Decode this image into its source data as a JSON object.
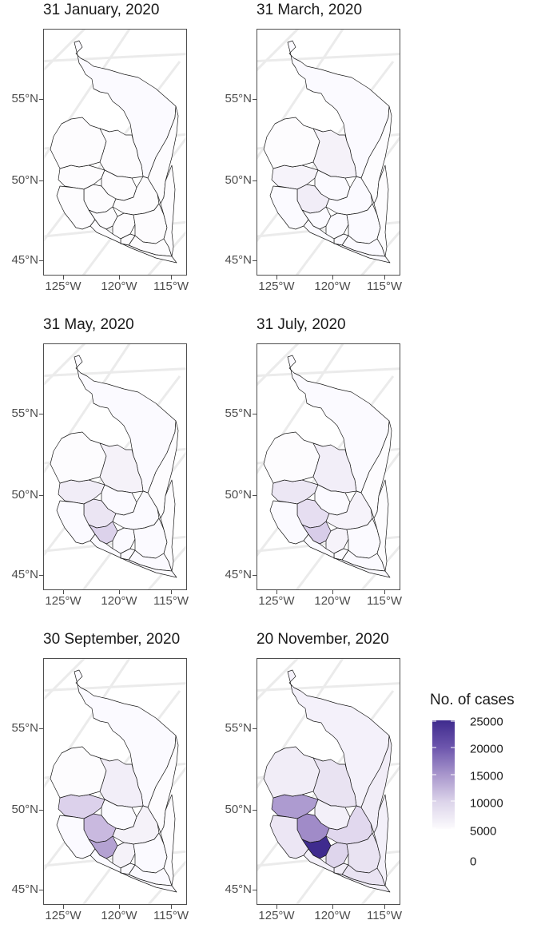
{
  "panels": [
    {
      "title": "31 January, 2020",
      "fills": [
        "#fbfaff",
        "#fdfcfe",
        "#fdfcfe",
        "#fdfcfe",
        "#fdfcfe",
        "#fdfcfe",
        "#fdfcfe",
        "#fdfcfe",
        "#fdfcfe",
        "#fdfcfe",
        "#fdfcfe",
        "#fdfcfe",
        "#fdfcfe",
        "#fdfcfe",
        "#fdfcfe",
        "#fdfcfe"
      ]
    },
    {
      "title": "31 March, 2020",
      "fills": [
        "#fbfaff",
        "#f6f3fa",
        "#fdfcfe",
        "#f5f2f9",
        "#fbfaff",
        "#f1edf7",
        "#fbfaff",
        "#fbfaff",
        "#fbfaff",
        "#fbfaff",
        "#fbfaff",
        "#fbfaff",
        "#fbfaff",
        "#fbfaff",
        "#fdfcfe",
        "#fdfcfe"
      ]
    },
    {
      "title": "31 May, 2020",
      "fills": [
        "#fbfaff",
        "#f1edf7",
        "#fdfcfe",
        "#f5f2f9",
        "#fbfaff",
        "#ebe5f3",
        "#fbfaff",
        "#dcd2eb",
        "#fbfaff",
        "#fbfaff",
        "#fbfaff",
        "#fbfaff",
        "#fbfaff",
        "#fbfaff",
        "#fdfcfe",
        "#fdfcfe"
      ]
    },
    {
      "title": "31 July, 2020",
      "fills": [
        "#fbfaff",
        "#ece7f4",
        "#fdfcfe",
        "#f2eef8",
        "#fbfaff",
        "#e6def1",
        "#f6f3fa",
        "#d8cde9",
        "#fbfaff",
        "#f6f3fa",
        "#fbfaff",
        "#fbfaff",
        "#fbfaff",
        "#fbfaff",
        "#fdfcfe",
        "#fdfcfe"
      ]
    },
    {
      "title": "30 September, 2020",
      "fills": [
        "#fbfaff",
        "#dcd1eb",
        "#fdfcfe",
        "#f2eef8",
        "#fbfaff",
        "#c9b9df",
        "#f5f2f9",
        "#b4a2d2",
        "#fbfaff",
        "#f5f2f9",
        "#fbfaff",
        "#fbfaff",
        "#fbfaff",
        "#fbfaff",
        "#fdfcfe",
        "#fdfcfe"
      ]
    },
    {
      "title": "20 November, 2020",
      "fills": [
        "#f4f1fa",
        "#ad9bd0",
        "#f1edf7",
        "#e9e3f2",
        "#f3f0f9",
        "#a08bc8",
        "#e1d8ee",
        "#3f2b8e",
        "#ece6f4",
        "#ded5ec",
        "#e9e3f2",
        "#e9e3f2",
        "#f1edf7",
        "#f3f0f9",
        "#f1edf7",
        "#f3f0f9"
      ]
    }
  ],
  "axes": {
    "y_labels": [
      "55°N",
      "50°N",
      "45°N"
    ],
    "x_labels": [
      "125°W",
      "120°W",
      "115°W"
    ]
  },
  "legend": {
    "title": "No. of cases",
    "labels": [
      "25000",
      "20000",
      "15000",
      "10000",
      "5000",
      "0"
    ],
    "color_low": "#fcfbfd",
    "color_high": "#3f2b8e"
  }
}
